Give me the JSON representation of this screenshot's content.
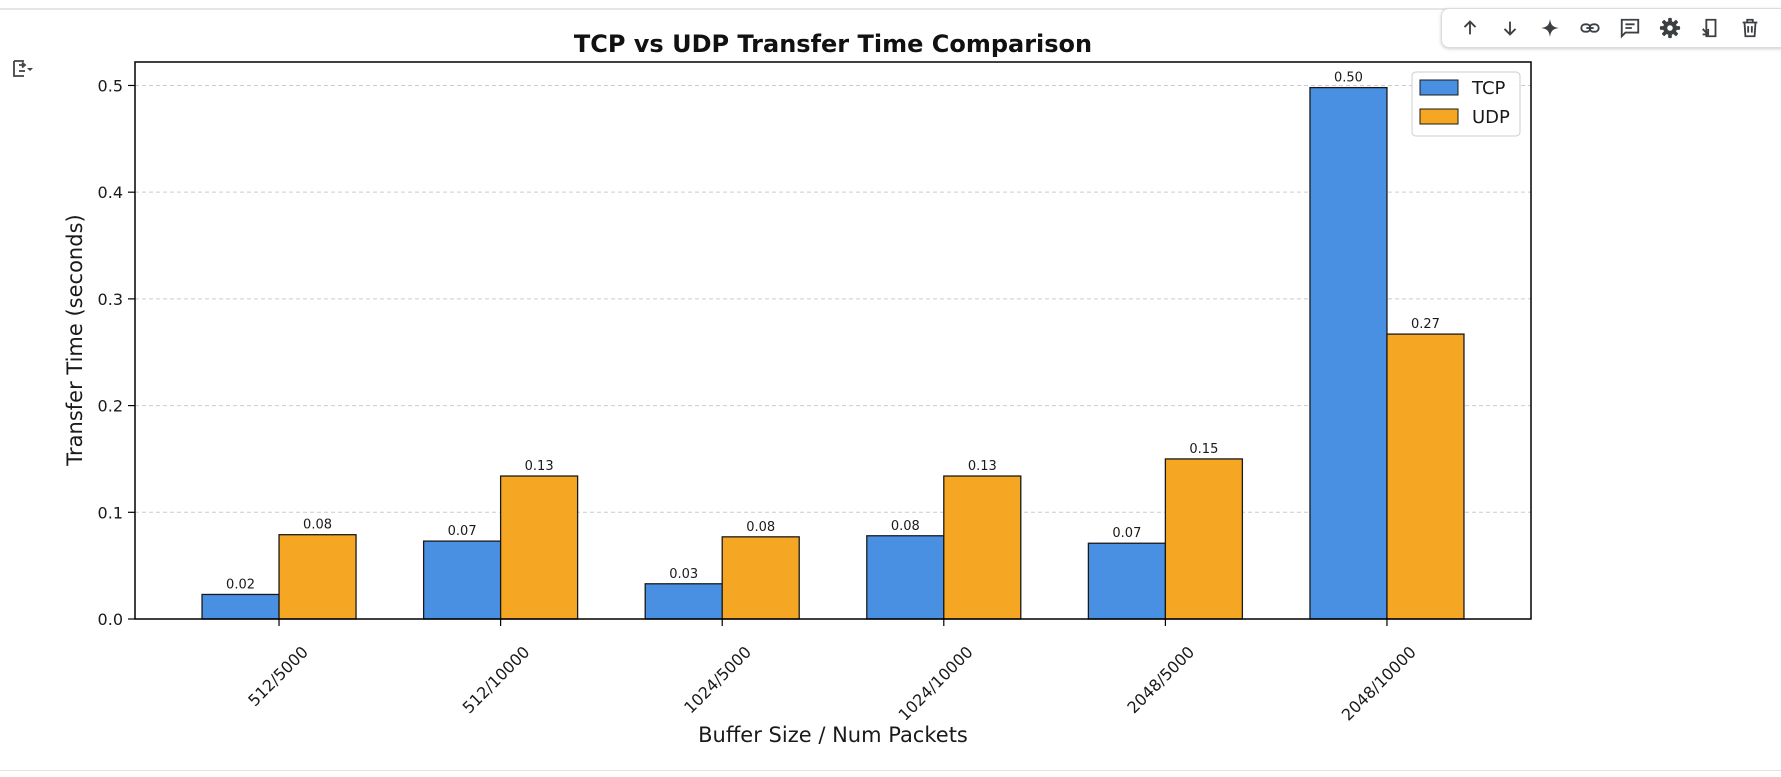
{
  "toolbar": {
    "icons": [
      "arrow-up-icon",
      "arrow-down-icon",
      "sparkle-icon",
      "link-icon",
      "comment-icon",
      "gear-icon",
      "mirror-cell-icon",
      "trash-icon",
      "more-vert-icon"
    ]
  },
  "colors": {
    "tcp": "#4a90e2",
    "udp": "#f5a623",
    "grid": "#cccccc"
  },
  "chart_data": {
    "type": "bar",
    "title": "TCP vs UDP Transfer Time Comparison",
    "xlabel": "Buffer Size / Num Packets",
    "ylabel": "Transfer Time (seconds)",
    "categories": [
      "512/5000",
      "512/10000",
      "1024/5000",
      "1024/10000",
      "2048/5000",
      "2048/10000"
    ],
    "series": [
      {
        "name": "TCP",
        "color": "#4a90e2",
        "values": [
          0.023,
          0.073,
          0.033,
          0.078,
          0.071,
          0.498
        ],
        "labels": [
          "0.02",
          "0.07",
          "0.03",
          "0.08",
          "0.07",
          "0.50"
        ]
      },
      {
        "name": "UDP",
        "color": "#f5a623",
        "values": [
          0.079,
          0.134,
          0.077,
          0.134,
          0.15,
          0.267
        ],
        "labels": [
          "0.08",
          "0.13",
          "0.08",
          "0.13",
          "0.15",
          "0.27"
        ]
      }
    ],
    "ylim": [
      0,
      0.522
    ],
    "yticks": [
      "0.0",
      "0.1",
      "0.2",
      "0.3",
      "0.4",
      "0.5"
    ],
    "grid": "y-dashed",
    "legend_position": "top-right"
  }
}
